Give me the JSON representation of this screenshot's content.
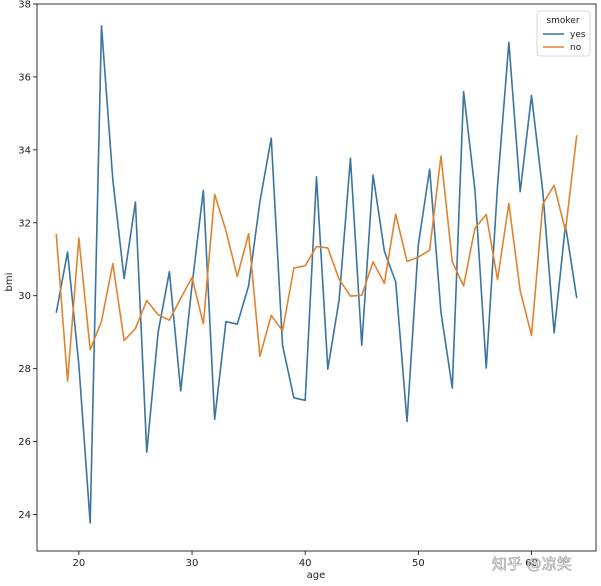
{
  "chart_data": {
    "type": "line",
    "xlabel": "age",
    "ylabel": "bmi",
    "xlim": [
      16.3,
      65.7
    ],
    "ylim": [
      23.0,
      38.0
    ],
    "xticks": [
      20,
      30,
      40,
      50,
      60
    ],
    "yticks": [
      24,
      26,
      28,
      30,
      32,
      34,
      36,
      38
    ],
    "grid": false,
    "legend": {
      "title": "smoker",
      "placement": "top-right"
    },
    "series": [
      {
        "name": "yes",
        "color": "#3a74a1",
        "x": [
          18,
          19,
          20,
          21,
          22,
          23,
          24,
          25,
          26,
          27,
          28,
          29,
          30,
          31,
          32,
          33,
          34,
          35,
          36,
          37,
          38,
          39,
          40,
          41,
          42,
          43,
          44,
          45,
          46,
          47,
          48,
          49,
          50,
          51,
          52,
          53,
          54,
          55,
          56,
          57,
          58,
          59,
          60,
          61,
          62,
          63,
          64
        ],
        "y": [
          29.53,
          31.2,
          28.1,
          23.77,
          37.4,
          33.18,
          30.47,
          32.57,
          25.71,
          28.99,
          30.66,
          27.39,
          30.29,
          32.89,
          26.61,
          29.29,
          29.22,
          30.27,
          32.58,
          34.32,
          28.64,
          27.2,
          27.13,
          33.26,
          27.99,
          29.89,
          33.77,
          28.64,
          33.31,
          31.22,
          30.38,
          26.55,
          31.4,
          33.47,
          29.55,
          27.47,
          35.6,
          32.91,
          28.02,
          33.02,
          36.95,
          32.85,
          35.49,
          32.85,
          28.98,
          31.94,
          29.93
        ]
      },
      {
        "name": "no",
        "color": "#e1832e",
        "x": [
          18,
          19,
          20,
          21,
          22,
          23,
          24,
          25,
          26,
          27,
          28,
          29,
          30,
          31,
          32,
          33,
          34,
          35,
          36,
          37,
          38,
          39,
          40,
          41,
          42,
          43,
          44,
          45,
          46,
          47,
          48,
          49,
          50,
          51,
          52,
          53,
          54,
          55,
          56,
          57,
          58,
          59,
          60,
          61,
          62,
          63,
          64
        ],
        "y": [
          31.7,
          27.66,
          31.58,
          28.52,
          29.3,
          30.88,
          28.77,
          29.1,
          29.87,
          29.48,
          29.33,
          29.93,
          30.5,
          29.23,
          32.78,
          31.78,
          30.53,
          31.7,
          28.34,
          29.46,
          29.04,
          30.76,
          30.82,
          31.35,
          31.31,
          30.45,
          29.99,
          30.01,
          30.93,
          30.34,
          32.24,
          30.94,
          31.06,
          31.25,
          33.83,
          30.93,
          30.27,
          31.85,
          32.23,
          30.44,
          32.53,
          30.14,
          28.91,
          32.51,
          33.03,
          31.78,
          34.4
        ]
      }
    ]
  },
  "watermark": "知乎 @凉笑"
}
